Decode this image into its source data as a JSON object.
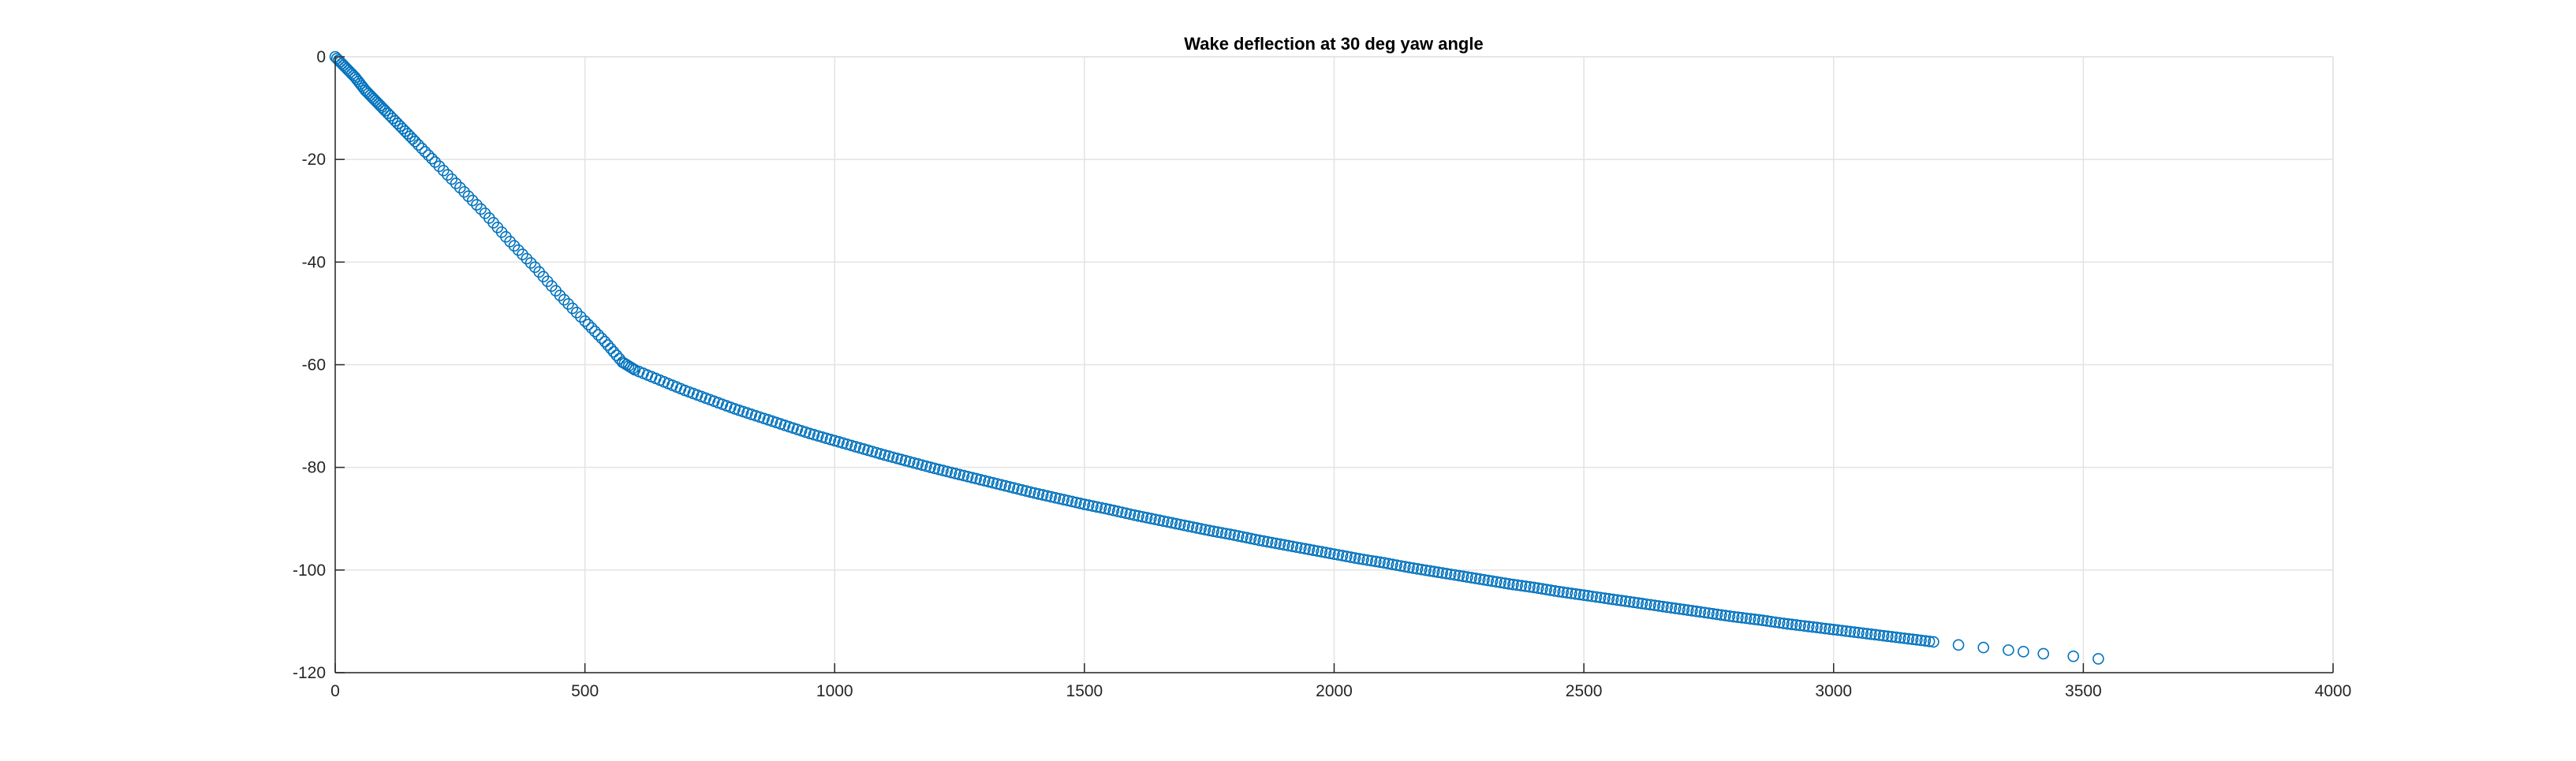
{
  "chart_data": {
    "type": "scatter",
    "title": "Wake deflection at 30 deg yaw angle",
    "xlabel": "",
    "ylabel": "",
    "xlim": [
      0,
      4000
    ],
    "ylim": [
      -120,
      0
    ],
    "xticks": [
      0,
      500,
      1000,
      1500,
      2000,
      2500,
      3000,
      3500,
      4000
    ],
    "yticks": [
      0,
      -20,
      -40,
      -60,
      -80,
      -100,
      -120
    ],
    "grid": true,
    "legend": "none",
    "marker": "open-circle",
    "color": "#0072BD",
    "series": [
      {
        "x": [
          0,
          20,
          40,
          60,
          80,
          100,
          130,
          160,
          200,
          250,
          300,
          350,
          400,
          450,
          500,
          540,
          575,
          600,
          650,
          700,
          750,
          800,
          850,
          900,
          950,
          1000,
          1050,
          1100,
          1150,
          1200,
          1250,
          1300,
          1350,
          1400,
          1450,
          1500,
          1550,
          1600,
          1650,
          1700,
          1750,
          1800,
          1850,
          1900,
          1950,
          2000,
          2050,
          2100,
          2150,
          2200,
          2250,
          2300,
          2350,
          2400,
          2450,
          2500,
          2550,
          2600,
          2650,
          2700,
          2750,
          2800,
          2850,
          2900,
          2950,
          3000,
          3050,
          3100,
          3150,
          3200,
          3250,
          3300,
          3350,
          3380,
          3420,
          3480,
          3530
        ],
        "y": [
          0,
          -2,
          -4,
          -6.5,
          -8.5,
          -10.5,
          -13.5,
          -16.5,
          -20.5,
          -25.5,
          -30.5,
          -36,
          -41,
          -46.5,
          -51.5,
          -55.5,
          -59.5,
          -61,
          -63,
          -65,
          -66.8,
          -68.6,
          -70.2,
          -71.8,
          -73.4,
          -74.8,
          -76.2,
          -77.6,
          -78.9,
          -80.2,
          -81.4,
          -82.6,
          -83.8,
          -85,
          -86.1,
          -87.2,
          -88.2,
          -89.3,
          -90.3,
          -91.3,
          -92.3,
          -93.2,
          -94.2,
          -95.1,
          -96,
          -96.9,
          -97.8,
          -98.6,
          -99.5,
          -100.3,
          -101.1,
          -101.9,
          -102.7,
          -103.4,
          -104.2,
          -104.9,
          -105.6,
          -106.3,
          -107,
          -107.7,
          -108.4,
          -109.1,
          -109.7,
          -110.4,
          -111,
          -111.6,
          -112.2,
          -112.8,
          -113.4,
          -114,
          -114.6,
          -115.1,
          -115.6,
          -115.9,
          -116.3,
          -116.8,
          -117.3
        ]
      }
    ]
  }
}
